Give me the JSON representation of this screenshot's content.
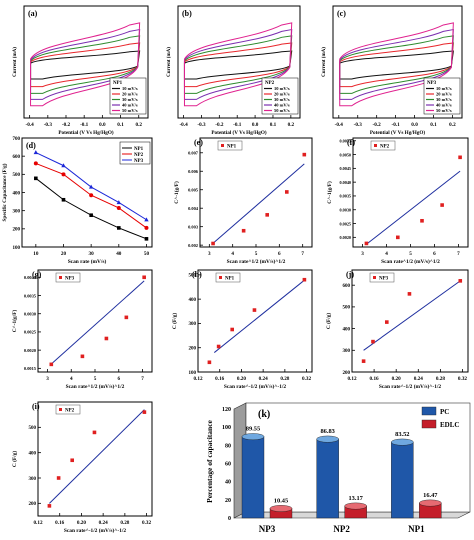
{
  "figure": {
    "panels": [
      "(a)",
      "(b)",
      "(c)",
      "(d)",
      "(e)",
      "(f)",
      "(g)",
      "(h)",
      "(j)",
      "(i)",
      "(k)"
    ]
  },
  "colors": {
    "s10": "#111111",
    "s20": "#e8262b",
    "s30": "#2e8b2e",
    "s40": "#7a2fb0",
    "s50": "#e0228f",
    "np1": "#000000",
    "np2": "#e60000",
    "np3": "#1c28d8",
    "marker": "#e02020",
    "fit": "#1f2f9f",
    "pc": "#1f57a8",
    "edlc": "#c41e2a",
    "pc_top": "#6fa8e0",
    "edlc_top": "#e66a72"
  },
  "chart_data": [
    {
      "panel": "(a)",
      "type": "line",
      "xlabel": "Potential (V Vs Hg/HgO)",
      "ylabel": "Current (mA)",
      "xticks": [
        "-0.4",
        "-0.3",
        "-0.2",
        "-0.1",
        "0.0",
        "0.1",
        "0.2"
      ],
      "xlim": [
        -0.4,
        0.25
      ],
      "legend_title": "NP1",
      "legend_position": "bottom-right",
      "series": [
        "10 mV/s",
        "20 mV/s",
        "30 mV/s",
        "40 mV/s",
        "50 mV/s"
      ],
      "amplitude": [
        0.32,
        0.5,
        0.66,
        0.8,
        0.95
      ]
    },
    {
      "panel": "(b)",
      "type": "line",
      "xlabel": "Potential (V Vs Hg/HgO)",
      "ylabel": "Current (mA)",
      "xticks": [
        "-0.4",
        "-0.3",
        "-0.2",
        "-0.1",
        "0.0",
        "0.1",
        "0.2"
      ],
      "xlim": [
        -0.4,
        0.25
      ],
      "legend_title": "NP2",
      "legend_position": "bottom-right",
      "series": [
        "10 mV/s",
        "20 mV/s",
        "30 mV/s",
        "40 mV/s",
        "50 mV/s"
      ],
      "amplitude": [
        0.32,
        0.5,
        0.66,
        0.8,
        0.95
      ]
    },
    {
      "panel": "(c)",
      "type": "line",
      "xlabel": "Potential (V Vs Hg/HgO)",
      "ylabel": "Current (mA)",
      "xticks": [
        "-0.4",
        "-0.3",
        "-0.2",
        "-0.1",
        "0.0",
        "0.1",
        "0.2"
      ],
      "xlim": [
        -0.4,
        0.25
      ],
      "legend_title": "NP3",
      "legend_position": "bottom-right",
      "series": [
        "10 mV/s",
        "20 mV/s",
        "30 mV/s",
        "40 mV/s",
        "50 mV/s"
      ],
      "amplitude": [
        0.32,
        0.5,
        0.66,
        0.8,
        0.95
      ]
    },
    {
      "panel": "(d)",
      "type": "line",
      "xlabel": "Scan rate (mV/s)",
      "ylabel": "Specific Capacitance (F/g)",
      "x": [
        10,
        20,
        30,
        40,
        50
      ],
      "xlim": [
        5,
        52
      ],
      "ylim": [
        100,
        700
      ],
      "xticks": [
        "10",
        "20",
        "30",
        "40",
        "50"
      ],
      "yticks": [
        "100",
        "200",
        "300",
        "400",
        "500",
        "600",
        "700"
      ],
      "legend_position": "top-right",
      "series": [
        {
          "name": "NP1",
          "values": [
            478,
            360,
            275,
            205,
            145
          ]
        },
        {
          "name": "NP2",
          "values": [
            560,
            500,
            385,
            315,
            205
          ]
        },
        {
          "name": "NP3",
          "values": [
            620,
            548,
            430,
            345,
            250
          ]
        }
      ]
    },
    {
      "panel": "(e)",
      "type": "scatter",
      "xlabel": "Scan rate^1/2 (mV/s)^1/2",
      "ylabel": "C^-1(g/F)",
      "xlim": [
        2.6,
        7.4
      ],
      "ylim": [
        0.0019,
        0.0078
      ],
      "xticks": [
        "3",
        "4",
        "5",
        "6",
        "7"
      ],
      "yticks": [
        "0.002",
        "0.003",
        "0.004",
        "0.005",
        "0.006",
        "0.007"
      ],
      "legend": "NP1",
      "legend_position": "top-left",
      "x": [
        3.16,
        4.47,
        5.48,
        6.32,
        7.07
      ],
      "y": [
        0.00209,
        0.00278,
        0.00364,
        0.00488,
        0.0069
      ],
      "fit": [
        [
          3.16,
          0.0021
        ],
        [
          7.07,
          0.0064
        ]
      ]
    },
    {
      "panel": "(f)",
      "type": "scatter",
      "xlabel": "Scan rate^1/2 (mV/s)^1/2",
      "ylabel": "C^-1(g/F)",
      "xlim": [
        2.6,
        7.4
      ],
      "ylim": [
        0.00165,
        0.0056
      ],
      "xticks": [
        "3",
        "4",
        "5",
        "6",
        "7"
      ],
      "yticks": [
        "0.0020",
        "0.0025",
        "0.0030",
        "0.0035",
        "0.0040",
        "0.0045",
        "0.0050",
        "0.0055"
      ],
      "legend": "NP2",
      "legend_position": "top-left",
      "x": [
        3.16,
        4.47,
        5.48,
        6.32,
        7.07
      ],
      "y": [
        0.00178,
        0.002,
        0.0026,
        0.00317,
        0.0049
      ],
      "fit": [
        [
          3.16,
          0.00175
        ],
        [
          7.07,
          0.0044
        ]
      ]
    },
    {
      "panel": "(g)",
      "type": "scatter",
      "xlabel": "Scan rate^1/2 (mV/s)^1/2",
      "ylabel": "C^-1(g/F)",
      "xlim": [
        2.6,
        7.4
      ],
      "ylim": [
        0.0014,
        0.0042
      ],
      "xticks": [
        "3",
        "4",
        "5",
        "6",
        "7"
      ],
      "yticks": [
        "0.0015",
        "0.0020",
        "0.0025",
        "0.0030",
        "0.0035",
        "0.0040"
      ],
      "legend": "NP3",
      "legend_position": "top-left",
      "x": [
        3.16,
        4.47,
        5.48,
        6.32,
        7.07
      ],
      "y": [
        0.00161,
        0.00183,
        0.00232,
        0.0029,
        0.004
      ],
      "fit": [
        [
          3.16,
          0.00162
        ],
        [
          7.07,
          0.0039
        ]
      ]
    },
    {
      "panel": "(h)",
      "type": "scatter",
      "xlabel": "Scan rate^-1/2 (mV/s)^-1/2",
      "ylabel": "C (F/g)",
      "xlim": [
        0.12,
        0.33
      ],
      "ylim": [
        100,
        520
      ],
      "xticks": [
        "0.12",
        "0.16",
        "0.20",
        "0.24",
        "0.28",
        "0.32"
      ],
      "yticks": [
        "100",
        "200",
        "300",
        "400",
        "500"
      ],
      "legend": "NP1",
      "legend_position": "top-left",
      "x": [
        0.141,
        0.158,
        0.183,
        0.224,
        0.316
      ],
      "y": [
        140,
        205,
        275,
        355,
        480
      ],
      "fit": [
        [
          0.15,
          180
        ],
        [
          0.316,
          478
        ]
      ]
    },
    {
      "panel": "(j)",
      "type": "scatter",
      "xlabel": "Scan rate^-1/2 (mV/s)^-1/2",
      "ylabel": "C (F/g)",
      "xlim": [
        0.12,
        0.33
      ],
      "ylim": [
        200,
        670
      ],
      "xticks": [
        "0.12",
        "0.16",
        "0.20",
        "0.24",
        "0.28",
        "0.32"
      ],
      "yticks": [
        "200",
        "300",
        "400",
        "500",
        "600"
      ],
      "legend": "NP3",
      "legend_position": "top-left",
      "x": [
        0.141,
        0.158,
        0.183,
        0.224,
        0.316
      ],
      "y": [
        250,
        340,
        430,
        560,
        620
      ],
      "fit": [
        [
          0.141,
          300
        ],
        [
          0.316,
          620
        ]
      ]
    },
    {
      "panel": "(i)",
      "type": "scatter",
      "xlabel": "Scan rate^-1/2 (mV/s)^-1/2",
      "ylabel": "C (F/g)",
      "xlim": [
        0.12,
        0.33
      ],
      "ylim": [
        150,
        600
      ],
      "xticks": [
        "0.12",
        "0.16",
        "0.20",
        "0.24",
        "0.28",
        "0.32"
      ],
      "yticks": [
        "200",
        "300",
        "400",
        "500"
      ],
      "legend": "NP2",
      "legend_position": "top-left",
      "x": [
        0.141,
        0.158,
        0.183,
        0.224,
        0.316
      ],
      "y": [
        190,
        300,
        370,
        480,
        560
      ],
      "fit": [
        [
          0.141,
          200
        ],
        [
          0.316,
          570
        ]
      ]
    },
    {
      "panel": "(k)",
      "type": "bar",
      "ylabel": "Percentage of capacitance",
      "categories": [
        "NP3",
        "NP2",
        "NP1"
      ],
      "ylim": [
        0,
        120
      ],
      "yticks": [
        "0",
        "20",
        "40",
        "60",
        "80",
        "100",
        "120"
      ],
      "legend_position": "top-right",
      "series": [
        {
          "name": "PC",
          "values": [
            89.55,
            86.83,
            83.52
          ]
        },
        {
          "name": "EDLC",
          "values": [
            10.45,
            13.17,
            16.47
          ]
        }
      ],
      "data_labels": {
        "PC": [
          "89.55",
          "86.83",
          "83.52"
        ],
        "EDLC": [
          "10.45",
          "13.17",
          "16.47"
        ]
      }
    }
  ]
}
